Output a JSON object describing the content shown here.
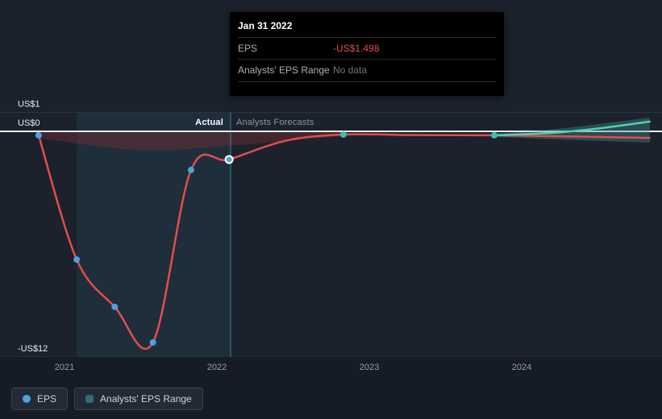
{
  "tooltip": {
    "date": "Jan 31 2022",
    "rows": [
      {
        "label": "EPS",
        "value": "-US$1.498"
      },
      {
        "label": "Analysts' EPS Range",
        "value": "No data"
      }
    ]
  },
  "annotations": {
    "actual": "Actual",
    "forecast": "Analysts Forecasts"
  },
  "legend": {
    "eps": "EPS",
    "range": "Analysts' EPS Range"
  },
  "chart_data": {
    "type": "line",
    "currency": "US$",
    "xlim": [
      2020.75,
      2024.85
    ],
    "ylim": [
      -12.6,
      1.3
    ],
    "grid": "horizontal",
    "legend_position": "bottom-left",
    "x_ticks": [
      {
        "label": "2021",
        "t": 2021
      },
      {
        "label": "2022",
        "t": 2022
      },
      {
        "label": "2023",
        "t": 2023
      },
      {
        "label": "2024",
        "t": 2024
      }
    ],
    "y_ticks": [
      {
        "label": "US$1",
        "v": 1
      },
      {
        "label": "US$0",
        "v": 0
      },
      {
        "label": "-US$12",
        "v": -12
      }
    ],
    "divider_t": 2022.09,
    "highlight_band": {
      "from_t": 2021.08,
      "to_t": 2022.09,
      "fill": "rgba(56,130,143,0.13)"
    },
    "series": [
      {
        "name": "EPS (actual)",
        "color": "#e64c4c",
        "points": [
          [
            2020.83,
            -0.21
          ],
          [
            2021.08,
            -6.82
          ],
          [
            2021.33,
            -9.34
          ],
          [
            2021.58,
            -11.23
          ],
          [
            2021.83,
            -2.06
          ],
          [
            2022.08,
            -1.498
          ],
          [
            2022.45,
            -0.5
          ],
          [
            2022.83,
            -0.17
          ],
          [
            2023.3,
            -0.2
          ],
          [
            2023.82,
            -0.21
          ],
          [
            2024.3,
            -0.27
          ],
          [
            2024.84,
            -0.35
          ]
        ]
      },
      {
        "name": "EPS (analysts forecast)",
        "color": "#4fd2b0",
        "points": [
          [
            2023.82,
            -0.21
          ],
          [
            2024.2,
            -0.08
          ],
          [
            2024.5,
            0.15
          ],
          [
            2024.84,
            0.52
          ]
        ]
      }
    ],
    "range_band": {
      "name": "Analysts' EPS Range",
      "fill": "rgba(64,140,138,0.40)",
      "top": [
        [
          2023.82,
          -0.12
        ],
        [
          2024.2,
          0.1
        ],
        [
          2024.84,
          0.73
        ]
      ],
      "bottom": [
        [
          2023.82,
          -0.3
        ],
        [
          2024.2,
          -0.42
        ],
        [
          2024.84,
          -0.6
        ]
      ]
    },
    "actual_band": {
      "fill": "rgba(150,50,50,0.33)",
      "top": [
        [
          2020.83,
          -0.05
        ],
        [
          2022.83,
          -0.05
        ]
      ],
      "bottom": [
        [
          2020.83,
          -0.35
        ],
        [
          2021.5,
          -1.0
        ],
        [
          2022.1,
          -0.75
        ],
        [
          2022.83,
          -0.25
        ]
      ]
    },
    "dots": [
      {
        "t": 2020.83,
        "v": -0.21,
        "kind": "actual"
      },
      {
        "t": 2021.08,
        "v": -6.82,
        "kind": "actual"
      },
      {
        "t": 2021.33,
        "v": -9.34,
        "kind": "actual"
      },
      {
        "t": 2021.58,
        "v": -11.23,
        "kind": "actual"
      },
      {
        "t": 2021.83,
        "v": -2.06,
        "kind": "actual"
      },
      {
        "t": 2022.08,
        "v": -1.498,
        "kind": "actual",
        "selected": true
      },
      {
        "t": 2022.83,
        "v": -0.17,
        "kind": "forecast"
      },
      {
        "t": 2023.82,
        "v": -0.21,
        "kind": "forecast"
      }
    ],
    "marker_colors": {
      "actual": "#4aa3df",
      "forecast": "#3fbfae"
    },
    "grid_color": "#2d3642",
    "zero_line_color": "#eef1f4",
    "divider_color": "rgba(84,186,196,0.6)",
    "y_label_color": "#e8edf2"
  }
}
